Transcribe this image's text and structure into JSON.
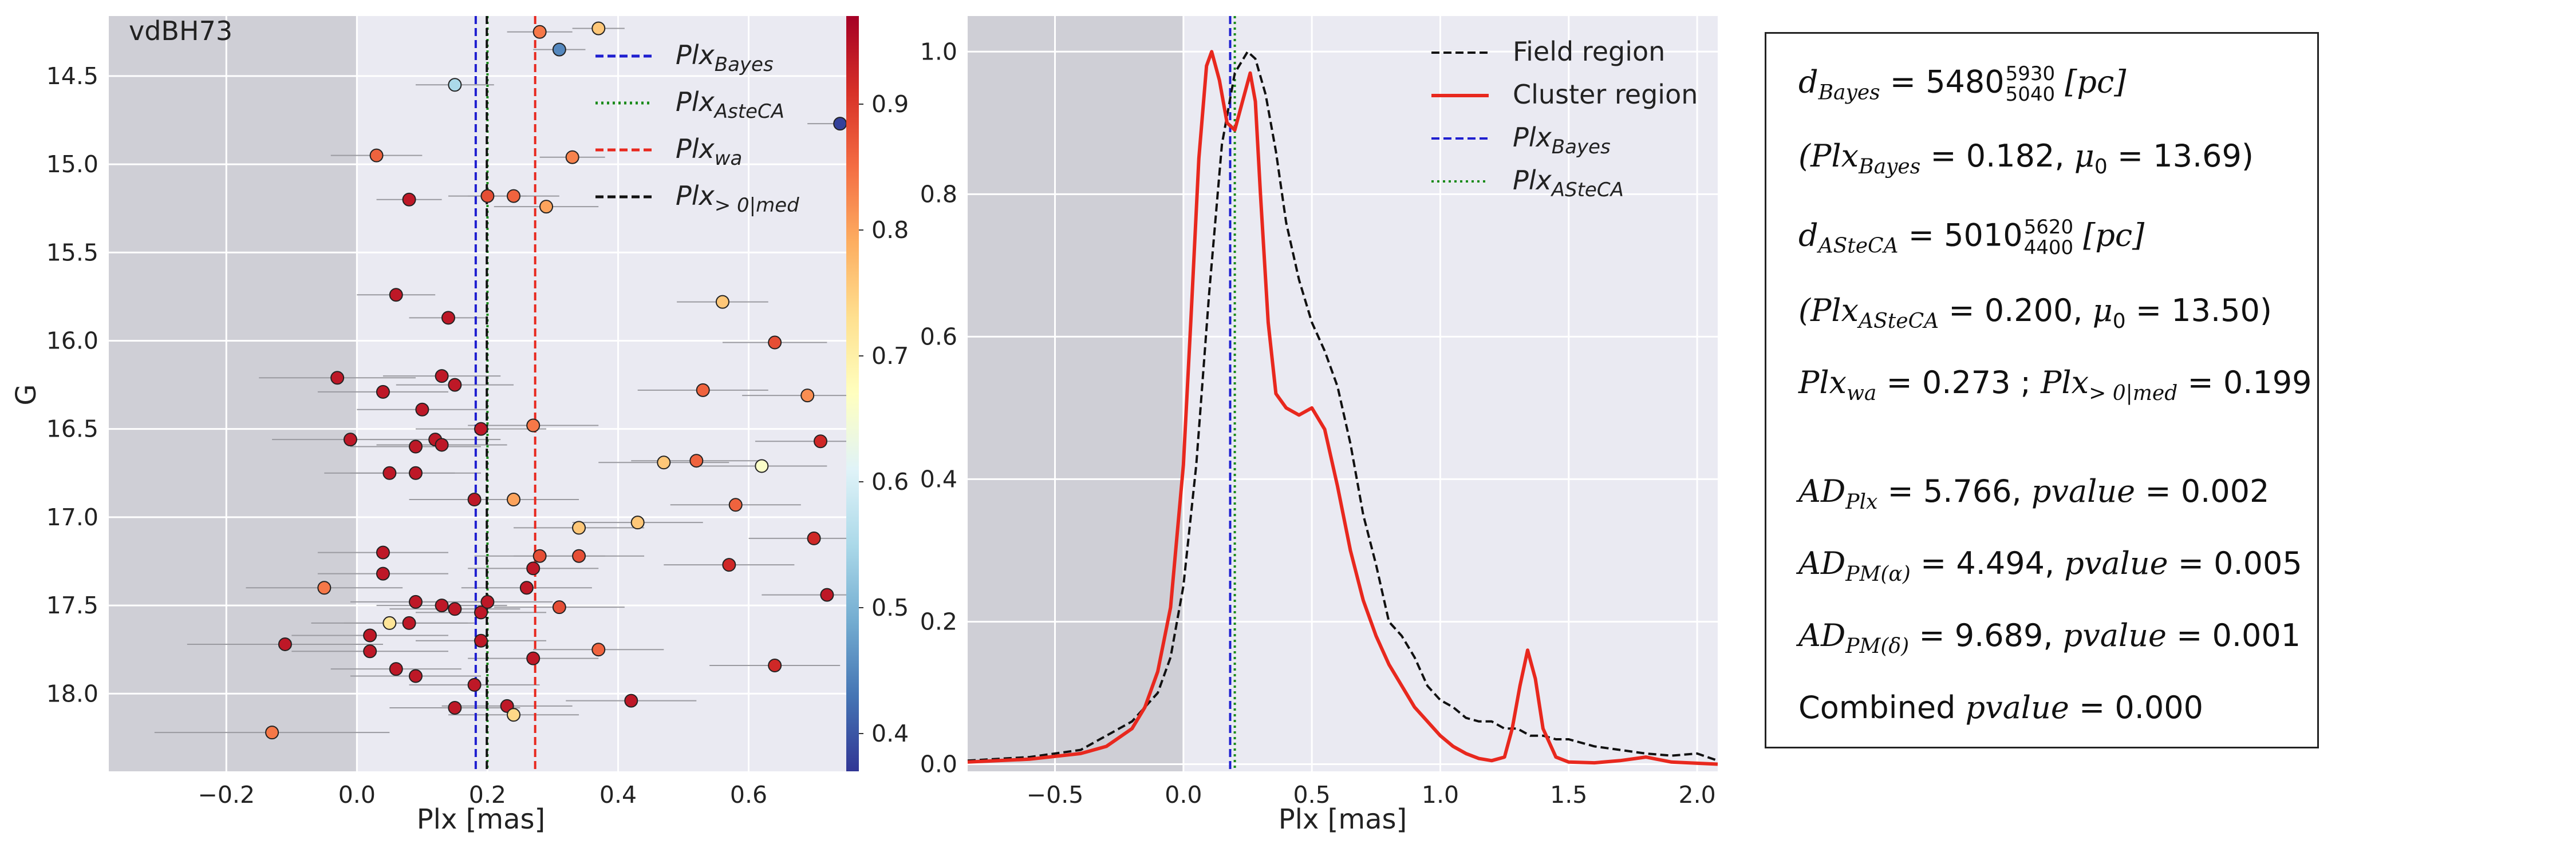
{
  "panel_title": "vdBH73",
  "colorbar_ticks": [
    "0.4",
    "0.5",
    "0.6",
    "0.7",
    "0.8",
    "0.9"
  ],
  "stats": {
    "line1_sym": "d",
    "line1_sub": "Bayes",
    "line1_val": "5480",
    "line1_hi": "5930",
    "line1_lo": "5040",
    "line1_unit": "[pc]",
    "line2_a_sym": "(Plx",
    "line2_a_sub": "Bayes",
    "line2_a_val": "= 0.182,",
    "line2_mu_sym": "μ",
    "line2_mu_sub": "0",
    "line2_mu_val": "= 13.69)",
    "line3_sym": "d",
    "line3_sub": "ASteCA",
    "line3_val": "5010",
    "line3_hi": "5620",
    "line3_lo": "4400",
    "line3_unit": "[pc]",
    "line4_a_sym": "(Plx",
    "line4_a_sub": "ASteCA",
    "line4_a_val": "= 0.200,",
    "line4_mu_sym": "μ",
    "line4_mu_sub": "0",
    "line4_mu_val": "= 13.50)",
    "line5_a_sym": "Plx",
    "line5_a_sub": "wa",
    "line5_a_val": "= 0.273 ;",
    "line5_b_sym": "Plx",
    "line5_b_sub": "> 0|med",
    "line5_b_val": "= 0.199",
    "line6_sym": "AD",
    "line6_sub": "Plx",
    "line6_val": "= 5.766,",
    "line6_p": "pvalue",
    "line6_pv": "= 0.002",
    "line7_sym": "AD",
    "line7_sub": "PM(α)",
    "line7_val": "= 4.494,",
    "line7_p": "pvalue",
    "line7_pv": "= 0.005",
    "line8_sym": "AD",
    "line8_sub": "PM(δ)",
    "line8_val": "= 9.689,",
    "line8_p": "pvalue",
    "line8_pv": "= 0.001",
    "line9_text": "Combined",
    "line9_p": "pvalue",
    "line9_pv": "= 0.000"
  },
  "chart_data": [
    {
      "type": "scatter",
      "title": "vdBH73",
      "xlabel": "Plx [mas]",
      "ylabel": "G",
      "xlim": [
        -0.38,
        0.76
      ],
      "ylim": [
        18.44,
        14.16
      ],
      "y_inverted": true,
      "xticks": [
        -0.2,
        0.0,
        0.2,
        0.4,
        0.6
      ],
      "xtick_labels": [
        "−0.2",
        "0.0",
        "0.2",
        "0.4",
        "0.6"
      ],
      "yticks": [
        14.5,
        15.0,
        15.5,
        16.0,
        16.5,
        17.0,
        17.5,
        18.0
      ],
      "ytick_labels": [
        "14.5",
        "15.0",
        "15.5",
        "16.0",
        "16.5",
        "17.0",
        "17.5",
        "18.0"
      ],
      "shaded_region": [
        -0.38,
        0.0
      ],
      "colorbar": {
        "range": [
          0.37,
          0.97
        ],
        "colormap": "RdYlBu_r"
      },
      "vlines": [
        {
          "name": "Plx_Bayes",
          "x": 0.182,
          "color": "#1f1fd0",
          "style": "dashed"
        },
        {
          "name": "Plx_ASteCA",
          "x": 0.2,
          "color": "#1a8a1a",
          "style": "dotted"
        },
        {
          "name": "Plx_wa",
          "x": 0.273,
          "color": "#e8281e",
          "style": "dashed"
        },
        {
          "name": "Plx_>0|med",
          "x": 0.199,
          "color": "#111111",
          "style": "dashed"
        }
      ],
      "legend_position": "top-right",
      "legend": [
        {
          "sym": "Plx",
          "sub": "Bayes"
        },
        {
          "sym": "Plx",
          "sub": "AsteCA"
        },
        {
          "sym": "Plx",
          "sub": "wa"
        },
        {
          "sym": "Plx",
          "sub": "> 0|med"
        }
      ],
      "points": [
        {
          "x": 0.37,
          "y": 14.23,
          "c": 0.76,
          "e": 0.04
        },
        {
          "x": 0.28,
          "y": 14.25,
          "c": 0.84,
          "e": 0.05
        },
        {
          "x": 0.31,
          "y": 14.35,
          "c": 0.45,
          "e": 0.04
        },
        {
          "x": 0.15,
          "y": 14.55,
          "c": 0.55,
          "e": 0.06
        },
        {
          "x": 0.74,
          "y": 14.77,
          "c": 0.38,
          "e": 0.05
        },
        {
          "x": 0.03,
          "y": 14.95,
          "c": 0.86,
          "e": 0.07
        },
        {
          "x": 0.33,
          "y": 14.96,
          "c": 0.83,
          "e": 0.05
        },
        {
          "x": 0.08,
          "y": 15.2,
          "c": 0.94,
          "e": 0.05
        },
        {
          "x": 0.2,
          "y": 15.18,
          "c": 0.88,
          "e": 0.06
        },
        {
          "x": 0.24,
          "y": 15.18,
          "c": 0.86,
          "e": 0.07
        },
        {
          "x": 0.29,
          "y": 15.24,
          "c": 0.8,
          "e": 0.08
        },
        {
          "x": 0.56,
          "y": 15.78,
          "c": 0.76,
          "e": 0.07
        },
        {
          "x": 0.06,
          "y": 15.74,
          "c": 0.94,
          "e": 0.06
        },
        {
          "x": 0.14,
          "y": 15.87,
          "c": 0.94,
          "e": 0.06
        },
        {
          "x": 0.64,
          "y": 16.01,
          "c": 0.88,
          "e": 0.08
        },
        {
          "x": -0.03,
          "y": 16.21,
          "c": 0.94,
          "e": 0.12
        },
        {
          "x": 0.04,
          "y": 16.29,
          "c": 0.94,
          "e": 0.1
        },
        {
          "x": 0.13,
          "y": 16.2,
          "c": 0.94,
          "e": 0.09
        },
        {
          "x": 0.15,
          "y": 16.25,
          "c": 0.94,
          "e": 0.09
        },
        {
          "x": 0.1,
          "y": 16.39,
          "c": 0.94,
          "e": 0.1
        },
        {
          "x": 0.53,
          "y": 16.28,
          "c": 0.86,
          "e": 0.1
        },
        {
          "x": 0.69,
          "y": 16.31,
          "c": 0.82,
          "e": 0.1
        },
        {
          "x": 0.19,
          "y": 16.5,
          "c": 0.94,
          "e": 0.1
        },
        {
          "x": 0.27,
          "y": 16.48,
          "c": 0.84,
          "e": 0.1
        },
        {
          "x": -0.01,
          "y": 16.56,
          "c": 0.94,
          "e": 0.12
        },
        {
          "x": 0.09,
          "y": 16.6,
          "c": 0.94,
          "e": 0.1
        },
        {
          "x": 0.12,
          "y": 16.56,
          "c": 0.94,
          "e": 0.1
        },
        {
          "x": 0.13,
          "y": 16.59,
          "c": 0.94,
          "e": 0.1
        },
        {
          "x": 0.71,
          "y": 16.57,
          "c": 0.92,
          "e": 0.1
        },
        {
          "x": 0.47,
          "y": 16.69,
          "c": 0.76,
          "e": 0.1
        },
        {
          "x": 0.52,
          "y": 16.68,
          "c": 0.86,
          "e": 0.1
        },
        {
          "x": 0.62,
          "y": 16.71,
          "c": 0.66,
          "e": 0.1
        },
        {
          "x": 0.05,
          "y": 16.75,
          "c": 0.94,
          "e": 0.1
        },
        {
          "x": 0.09,
          "y": 16.75,
          "c": 0.94,
          "e": 0.1
        },
        {
          "x": 0.18,
          "y": 16.9,
          "c": 0.94,
          "e": 0.1
        },
        {
          "x": 0.24,
          "y": 16.9,
          "c": 0.8,
          "e": 0.1
        },
        {
          "x": 0.34,
          "y": 17.06,
          "c": 0.76,
          "e": 0.1
        },
        {
          "x": 0.43,
          "y": 17.03,
          "c": 0.76,
          "e": 0.1
        },
        {
          "x": 0.58,
          "y": 16.93,
          "c": 0.86,
          "e": 0.1
        },
        {
          "x": 0.7,
          "y": 17.12,
          "c": 0.92,
          "e": 0.1
        },
        {
          "x": 0.04,
          "y": 17.2,
          "c": 0.94,
          "e": 0.1
        },
        {
          "x": 0.28,
          "y": 17.22,
          "c": 0.88,
          "e": 0.1
        },
        {
          "x": 0.27,
          "y": 17.29,
          "c": 0.94,
          "e": 0.1
        },
        {
          "x": 0.34,
          "y": 17.22,
          "c": 0.88,
          "e": 0.1
        },
        {
          "x": 0.57,
          "y": 17.27,
          "c": 0.92,
          "e": 0.1
        },
        {
          "x": 0.04,
          "y": 17.32,
          "c": 0.94,
          "e": 0.1
        },
        {
          "x": -0.05,
          "y": 17.4,
          "c": 0.84,
          "e": 0.12
        },
        {
          "x": 0.26,
          "y": 17.4,
          "c": 0.94,
          "e": 0.1
        },
        {
          "x": 0.72,
          "y": 17.44,
          "c": 0.94,
          "e": 0.1
        },
        {
          "x": 0.09,
          "y": 17.48,
          "c": 0.94,
          "e": 0.1
        },
        {
          "x": 0.13,
          "y": 17.5,
          "c": 0.94,
          "e": 0.1
        },
        {
          "x": 0.15,
          "y": 17.52,
          "c": 0.94,
          "e": 0.1
        },
        {
          "x": 0.19,
          "y": 17.54,
          "c": 0.94,
          "e": 0.1
        },
        {
          "x": 0.2,
          "y": 17.48,
          "c": 0.94,
          "e": 0.1
        },
        {
          "x": 0.31,
          "y": 17.51,
          "c": 0.88,
          "e": 0.1
        },
        {
          "x": 0.05,
          "y": 17.6,
          "c": 0.72,
          "e": 0.12
        },
        {
          "x": 0.08,
          "y": 17.6,
          "c": 0.94,
          "e": 0.1
        },
        {
          "x": 0.02,
          "y": 17.67,
          "c": 0.94,
          "e": 0.12
        },
        {
          "x": -0.11,
          "y": 17.72,
          "c": 0.94,
          "e": 0.15
        },
        {
          "x": 0.02,
          "y": 17.76,
          "c": 0.94,
          "e": 0.12
        },
        {
          "x": 0.19,
          "y": 17.7,
          "c": 0.94,
          "e": 0.1
        },
        {
          "x": 0.27,
          "y": 17.8,
          "c": 0.94,
          "e": 0.1
        },
        {
          "x": 0.37,
          "y": 17.75,
          "c": 0.86,
          "e": 0.1
        },
        {
          "x": 0.06,
          "y": 17.86,
          "c": 0.94,
          "e": 0.1
        },
        {
          "x": 0.09,
          "y": 17.9,
          "c": 0.94,
          "e": 0.1
        },
        {
          "x": 0.18,
          "y": 17.95,
          "c": 0.94,
          "e": 0.1
        },
        {
          "x": 0.64,
          "y": 17.84,
          "c": 0.92,
          "e": 0.1
        },
        {
          "x": 0.42,
          "y": 18.04,
          "c": 0.94,
          "e": 0.1
        },
        {
          "x": 0.15,
          "y": 18.08,
          "c": 0.94,
          "e": 0.1
        },
        {
          "x": 0.23,
          "y": 18.07,
          "c": 0.94,
          "e": 0.1
        },
        {
          "x": 0.24,
          "y": 18.12,
          "c": 0.74,
          "e": 0.1
        },
        {
          "x": -0.13,
          "y": 18.22,
          "c": 0.84,
          "e": 0.18
        }
      ]
    },
    {
      "type": "line",
      "xlabel": "Plx [mas]",
      "ylabel": "",
      "xlim": [
        -0.84,
        2.08
      ],
      "ylim": [
        -0.01,
        1.05
      ],
      "xticks": [
        -0.5,
        0.0,
        0.5,
        1.0,
        1.5,
        2.0
      ],
      "xtick_labels": [
        "−0.5",
        "0.0",
        "0.5",
        "1.0",
        "1.5",
        "2.0"
      ],
      "yticks": [
        0.0,
        0.2,
        0.4,
        0.6,
        0.8,
        1.0
      ],
      "ytick_labels": [
        "0.0",
        "0.2",
        "0.4",
        "0.6",
        "0.8",
        "1.0"
      ],
      "shaded_region": [
        -0.84,
        0.0
      ],
      "legend_position": "top-right",
      "legend": [
        {
          "text": "Field region",
          "color": "#111111",
          "style": "dashed"
        },
        {
          "text": "Cluster region",
          "color": "#e8281e",
          "style": "solid"
        },
        {
          "sym": "Plx",
          "sub": "Bayes",
          "color": "#1f1fd0",
          "style": "dashed"
        },
        {
          "sym": "Plx",
          "sub": "ASteCA",
          "color": "#1a8a1a",
          "style": "dotted"
        }
      ],
      "vlines": [
        {
          "name": "Plx_Bayes",
          "x": 0.182,
          "color": "#1f1fd0",
          "style": "dashed"
        },
        {
          "name": "Plx_ASteCA",
          "x": 0.2,
          "color": "#1a8a1a",
          "style": "dotted"
        }
      ],
      "series": [
        {
          "name": "Field region",
          "color": "#111111",
          "style": "dashed",
          "x": [
            -0.84,
            -0.6,
            -0.4,
            -0.3,
            -0.2,
            -0.1,
            -0.05,
            0.0,
            0.05,
            0.1,
            0.15,
            0.2,
            0.25,
            0.28,
            0.32,
            0.36,
            0.4,
            0.45,
            0.5,
            0.55,
            0.6,
            0.65,
            0.7,
            0.75,
            0.8,
            0.85,
            0.9,
            0.95,
            1.0,
            1.05,
            1.1,
            1.15,
            1.2,
            1.25,
            1.3,
            1.35,
            1.4,
            1.45,
            1.5,
            1.55,
            1.6,
            1.7,
            1.8,
            1.9,
            2.0,
            2.08
          ],
          "y": [
            0.005,
            0.01,
            0.02,
            0.04,
            0.06,
            0.1,
            0.15,
            0.25,
            0.42,
            0.66,
            0.87,
            0.97,
            1.0,
            0.99,
            0.94,
            0.86,
            0.76,
            0.68,
            0.62,
            0.58,
            0.53,
            0.45,
            0.35,
            0.28,
            0.2,
            0.18,
            0.15,
            0.11,
            0.09,
            0.08,
            0.065,
            0.06,
            0.06,
            0.05,
            0.05,
            0.04,
            0.04,
            0.035,
            0.035,
            0.03,
            0.025,
            0.02,
            0.015,
            0.012,
            0.015,
            0.005
          ]
        },
        {
          "name": "Cluster region",
          "color": "#e8281e",
          "style": "solid",
          "x": [
            -0.84,
            -0.6,
            -0.4,
            -0.3,
            -0.2,
            -0.15,
            -0.1,
            -0.05,
            0.0,
            0.03,
            0.06,
            0.09,
            0.11,
            0.14,
            0.17,
            0.2,
            0.23,
            0.26,
            0.28,
            0.3,
            0.33,
            0.36,
            0.4,
            0.45,
            0.5,
            0.55,
            0.6,
            0.65,
            0.7,
            0.75,
            0.8,
            0.85,
            0.9,
            0.95,
            1.0,
            1.05,
            1.1,
            1.15,
            1.2,
            1.25,
            1.28,
            1.31,
            1.34,
            1.37,
            1.4,
            1.45,
            1.5,
            1.6,
            1.7,
            1.8,
            1.9,
            2.08
          ],
          "y": [
            0.003,
            0.007,
            0.015,
            0.025,
            0.05,
            0.08,
            0.13,
            0.22,
            0.42,
            0.63,
            0.85,
            0.98,
            1.0,
            0.96,
            0.9,
            0.89,
            0.93,
            0.97,
            0.93,
            0.8,
            0.62,
            0.52,
            0.5,
            0.49,
            0.5,
            0.47,
            0.39,
            0.3,
            0.23,
            0.18,
            0.14,
            0.11,
            0.08,
            0.06,
            0.04,
            0.025,
            0.015,
            0.008,
            0.005,
            0.01,
            0.05,
            0.11,
            0.16,
            0.12,
            0.05,
            0.01,
            0.003,
            0.002,
            0.005,
            0.01,
            0.003,
            0.0
          ]
        }
      ]
    }
  ]
}
